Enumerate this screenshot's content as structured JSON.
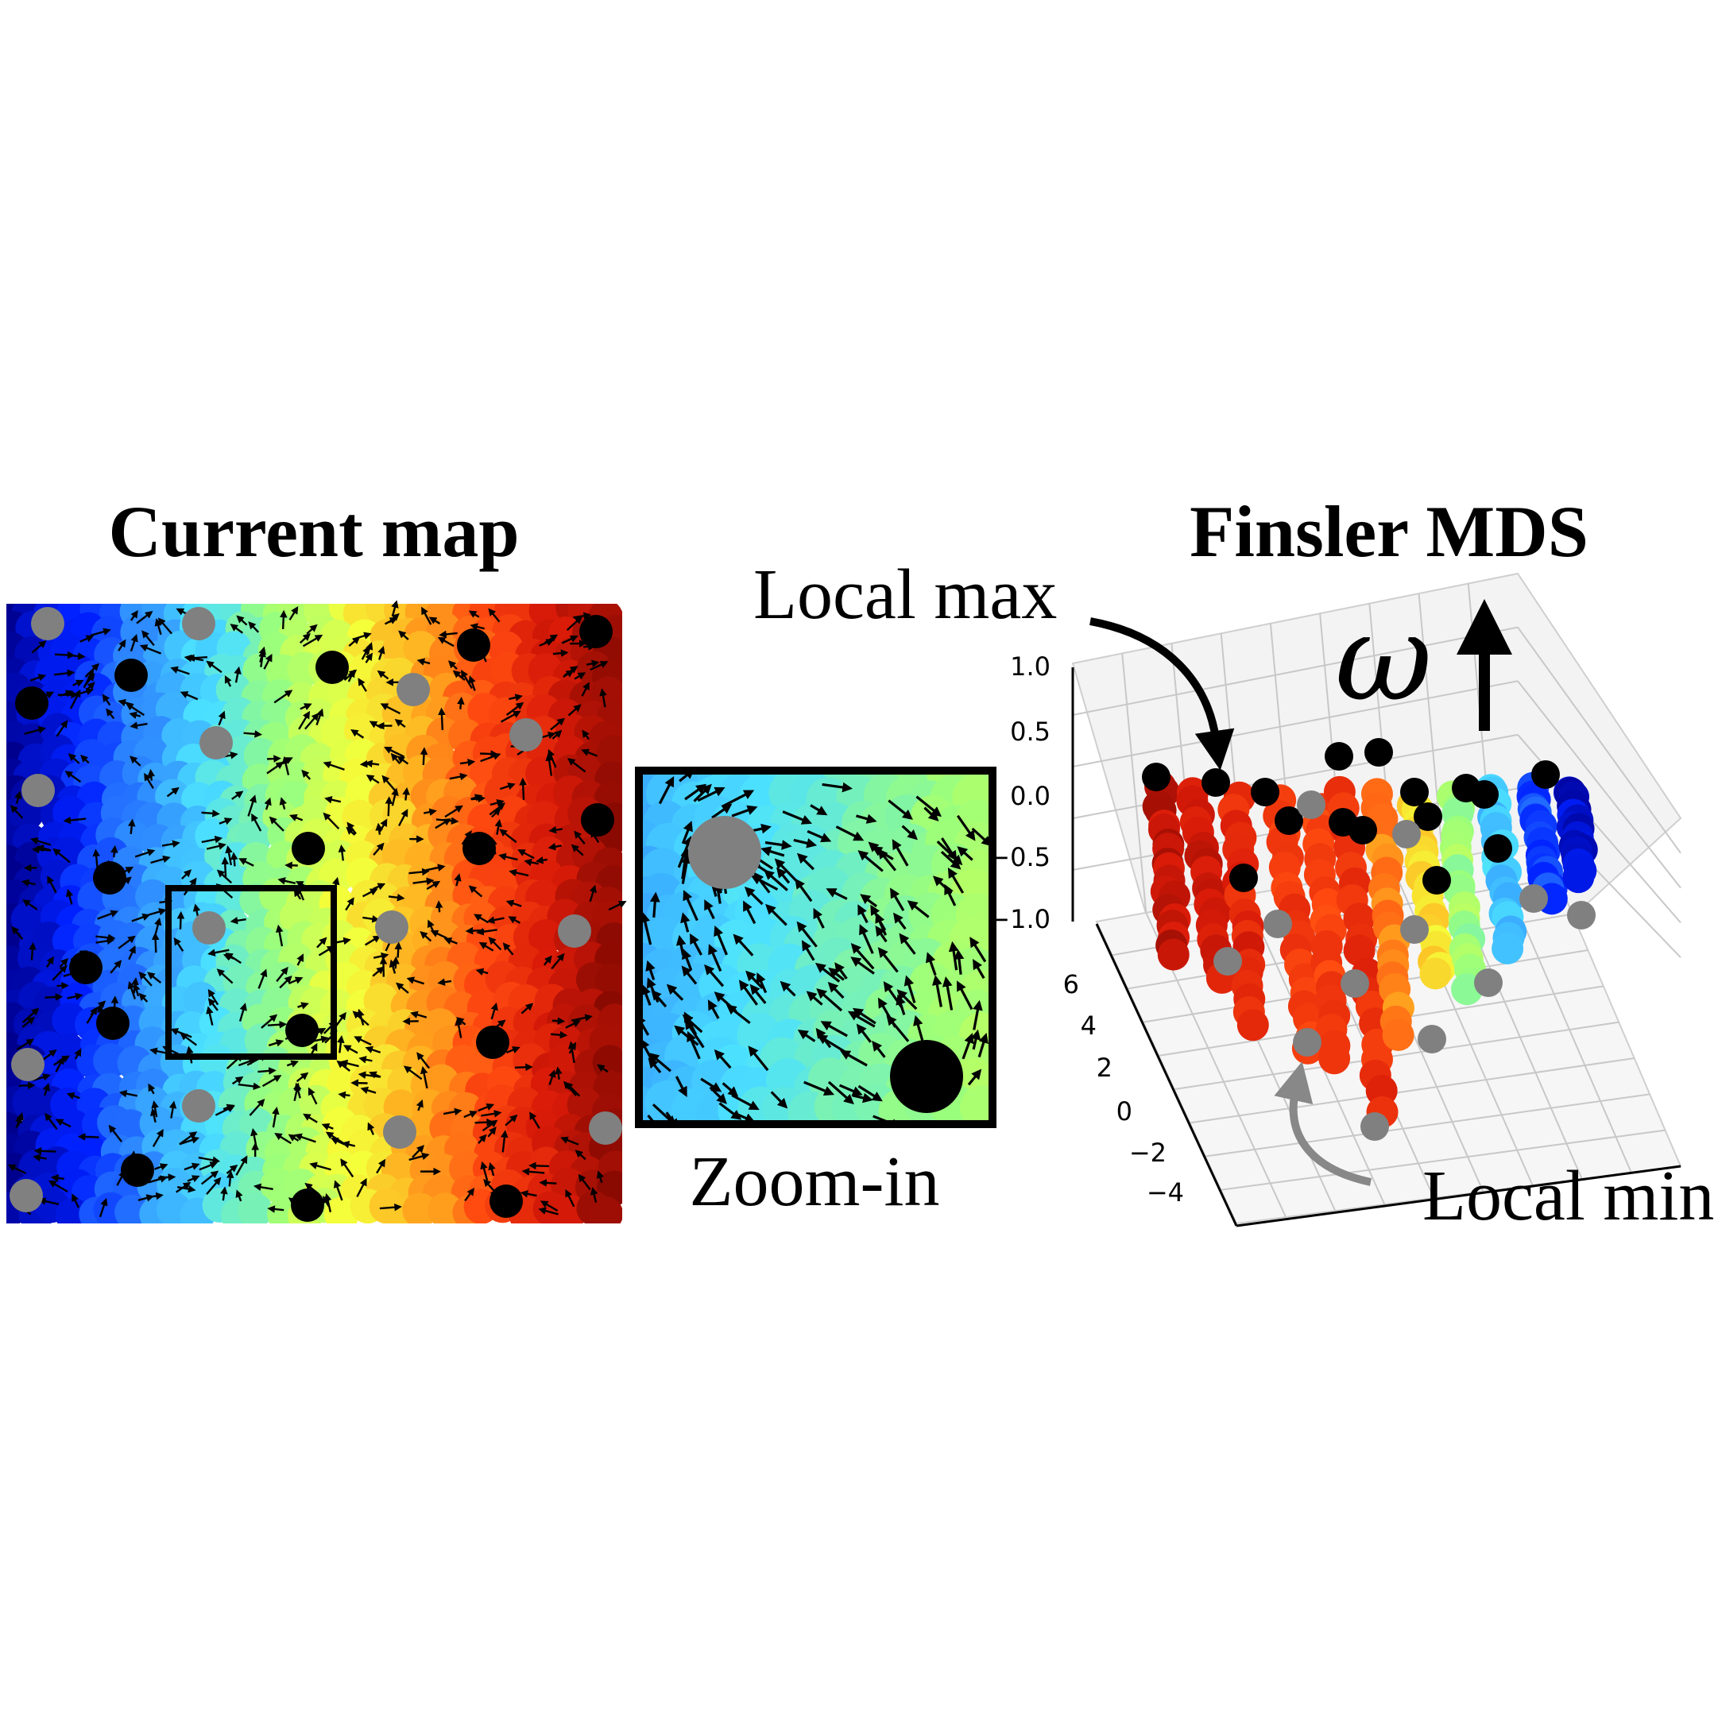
{
  "panels": {
    "current_map": {
      "title": "Current map"
    },
    "zoom": {
      "caption": "Zoom-in"
    },
    "finsler": {
      "title": "Finsler MDS",
      "annotation_max": "Local max",
      "annotation_min": "Local min",
      "axis_symbol": "ω",
      "z_ticks": [
        "1.0",
        "0.5",
        "0.0",
        "−0.5",
        "−1.0"
      ],
      "y_ticks": [
        "6",
        "4",
        "2",
        "0",
        "−2",
        "−4"
      ]
    }
  },
  "colors": {
    "jet_scale": [
      "#00008f",
      "#0020ff",
      "#2f8cff",
      "#4ce1ff",
      "#9cff7a",
      "#f4ff3a",
      "#ffb020",
      "#ff4a10",
      "#d81a08",
      "#8a0a02"
    ],
    "max_marker": "#000000",
    "min_marker": "#808080"
  },
  "chart_data": {
    "type": "scatter",
    "z_range": [
      -1.0,
      1.0
    ],
    "y_range": [
      -4,
      6
    ],
    "grid": true
  }
}
